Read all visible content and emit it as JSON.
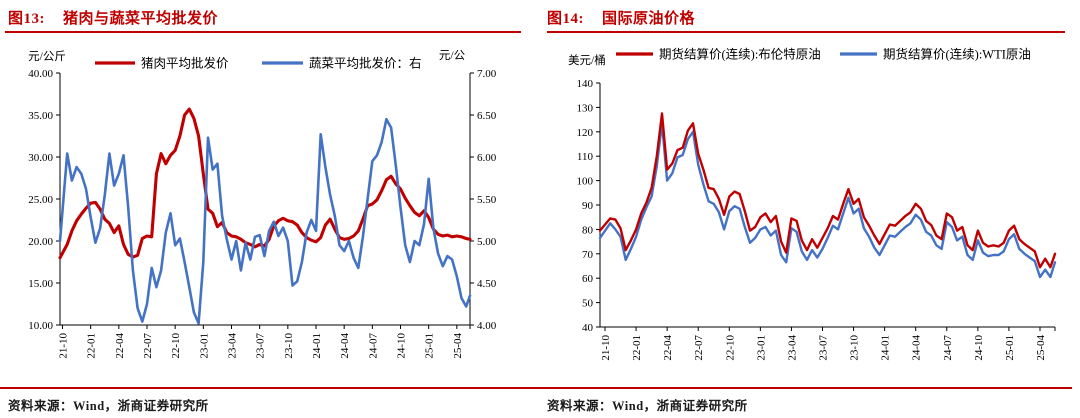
{
  "panels": [
    {
      "title_label": "图13:",
      "title": "猪肉与蔬菜平均批发价",
      "source": "资料来源：Wind，浙商证券研究所"
    },
    {
      "title_label": "图14:",
      "title": "国际原油价格",
      "source": "资料来源：Wind，浙商证券研究所"
    }
  ],
  "colors": {
    "accent_red": "#c00000",
    "line_red": "#c00000",
    "line_blue": "#4472c4",
    "axis_black": "#000000"
  },
  "chart_data": [
    {
      "type": "line",
      "title": "猪肉与蔬菜平均批发价",
      "x_start": "2021-10",
      "x_tick_labels": [
        "21-10",
        "22-01",
        "22-04",
        "22-07",
        "22-10",
        "23-01",
        "23-04",
        "23-07",
        "23-10",
        "24-01",
        "24-04",
        "24-07",
        "24-10",
        "25-01",
        "25-04"
      ],
      "y_left": {
        "label": "元/公斤",
        "min": 10,
        "max": 40,
        "tick_labels": [
          "40.00",
          "35.00",
          "30.00",
          "25.00",
          "20.00",
          "15.00",
          "10.00"
        ]
      },
      "y_right": {
        "label": "元/公",
        "min": 4,
        "max": 7,
        "tick_labels": [
          "7.00",
          "6.50",
          "6.00",
          "5.50",
          "5.00",
          "4.50",
          "4.00"
        ]
      },
      "grid": false,
      "legend_position": "top",
      "series": [
        {
          "name": "猪肉平均批发价",
          "axis": "left",
          "color": "#c00000",
          "x_start_month": 0,
          "x_step_months": 0.5,
          "values": [
            18.0,
            19.6,
            21.2,
            22.4,
            23.2,
            23.9,
            24.5,
            24.6,
            23.8,
            22.6,
            22.1,
            21.0,
            21.8,
            19.6,
            18.4,
            18.1,
            18.3,
            20.3,
            20.6,
            20.5,
            28.0,
            30.4,
            29.2,
            30.2,
            30.8,
            32.5,
            35.0,
            35.7,
            34.6,
            32.5,
            28.0,
            23.8,
            23.3,
            21.7,
            22.2,
            21.0,
            20.6,
            20.5,
            20.2,
            19.8,
            19.6,
            19.3,
            19.6,
            19.4,
            20.2,
            21.8,
            22.4,
            22.7,
            22.4,
            22.3,
            21.9,
            21.0,
            20.4,
            20.1,
            19.9,
            20.4,
            21.9,
            22.6,
            21.4,
            20.4,
            20.2,
            20.3,
            20.6,
            21.2,
            22.6,
            24.2,
            24.4,
            24.9,
            26.0,
            27.3,
            27.7,
            26.8,
            26.2,
            25.1,
            24.2,
            23.4,
            23.0,
            23.6,
            22.8,
            21.4,
            20.8,
            20.6,
            20.7,
            20.5,
            20.6,
            20.5,
            20.3,
            20.2
          ]
        },
        {
          "name": "蔬菜平均批发价：右",
          "axis": "right",
          "color": "#4472c4",
          "x_start_month": 0,
          "x_step_months": 0.5,
          "values": [
            5.0,
            6.04,
            5.72,
            5.88,
            5.8,
            5.62,
            5.28,
            4.98,
            5.15,
            5.55,
            6.04,
            5.66,
            5.8,
            6.02,
            5.4,
            4.65,
            4.2,
            4.04,
            4.25,
            4.68,
            4.45,
            4.65,
            5.1,
            5.33,
            4.95,
            5.03,
            4.75,
            4.45,
            4.15,
            4.02,
            4.75,
            6.23,
            5.85,
            5.92,
            5.3,
            5.02,
            4.78,
            5.0,
            4.65,
            4.98,
            4.78,
            5.05,
            5.07,
            4.82,
            5.12,
            5.23,
            5.06,
            5.16,
            5.0,
            4.47,
            4.52,
            4.75,
            5.1,
            5.25,
            5.12,
            6.27,
            5.88,
            5.55,
            5.3,
            4.95,
            4.88,
            5.0,
            4.8,
            4.68,
            5.05,
            5.5,
            5.95,
            6.02,
            6.18,
            6.45,
            6.35,
            5.9,
            5.4,
            4.95,
            4.75,
            5.0,
            4.95,
            5.2,
            5.74,
            5.15,
            4.85,
            4.7,
            4.82,
            4.78,
            4.58,
            4.32,
            4.22,
            4.35
          ]
        }
      ]
    },
    {
      "type": "line",
      "title": "国际原油价格",
      "x_start": "2021-10",
      "x_tick_labels": [
        "21-10",
        "22-01",
        "22-04",
        "22-07",
        "22-10",
        "23-01",
        "23-04",
        "23-07",
        "23-10",
        "24-01",
        "24-04",
        "24-07",
        "24-10",
        "25-01",
        "25-04"
      ],
      "y_left": {
        "label": "美元/桶",
        "min": 40,
        "max": 140,
        "tick_labels": [
          "140",
          "130",
          "120",
          "110",
          "100",
          "90",
          "80",
          "70",
          "60",
          "50",
          "40"
        ]
      },
      "grid": false,
      "legend_position": "top",
      "series": [
        {
          "name": "期货结算价(连续):布伦特原油",
          "axis": "left",
          "color": "#c00000",
          "x_start_month": 0,
          "x_step_months": 0.5,
          "values": [
            79.5,
            84.5,
            84.0,
            80.5,
            71.5,
            75.5,
            80.0,
            86.5,
            91.0,
            97.0,
            110.0,
            127.5,
            104.5,
            107.0,
            112.5,
            113.5,
            120.5,
            123.5,
            111.0,
            104.5,
            97.0,
            96.5,
            92.5,
            86.0,
            93.5,
            95.5,
            94.5,
            87.5,
            79.5,
            81.0,
            85.0,
            86.5,
            83.0,
            85.5,
            75.0,
            70.5,
            84.5,
            83.5,
            75.5,
            71.5,
            76.0,
            72.5,
            76.5,
            80.5,
            85.5,
            84.0,
            90.5,
            96.5,
            90.5,
            92.5,
            85.0,
            81.5,
            77.5,
            74.0,
            78.0,
            82.0,
            81.5,
            83.5,
            85.5,
            87.0,
            90.5,
            88.5,
            83.5,
            81.8,
            77.5,
            76.0,
            86.5,
            85.0,
            79.5,
            81.0,
            73.5,
            71.5,
            79.5,
            74.5,
            73.0,
            73.5,
            73.0,
            74.5,
            79.5,
            81.5,
            76.0,
            74.0,
            72.5,
            71.0,
            64.5,
            68.0,
            64.5,
            70.0
          ]
        },
        {
          "name": "期货结算价(连续):WTI原油",
          "axis": "left",
          "color": "#4472c4",
          "x_start_month": 0,
          "x_step_months": 0.5,
          "values": [
            76.5,
            82.5,
            80.0,
            77.0,
            67.5,
            72.0,
            77.0,
            84.0,
            89.0,
            93.5,
            106.0,
            123.5,
            100.0,
            103.0,
            109.5,
            110.5,
            117.0,
            120.0,
            106.5,
            98.5,
            91.5,
            90.5,
            87.0,
            80.0,
            87.5,
            89.5,
            88.5,
            81.0,
            74.5,
            76.5,
            80.0,
            81.0,
            77.5,
            79.5,
            69.5,
            66.5,
            80.5,
            79.0,
            71.0,
            67.5,
            71.5,
            68.5,
            72.0,
            76.5,
            81.5,
            80.0,
            86.5,
            93.0,
            86.5,
            88.5,
            80.5,
            77.0,
            72.5,
            69.5,
            73.5,
            77.5,
            77.0,
            79.0,
            81.0,
            82.5,
            86.0,
            84.0,
            79.0,
            77.5,
            73.5,
            72.0,
            83.0,
            81.0,
            75.5,
            77.0,
            69.5,
            67.5,
            75.5,
            70.5,
            69.0,
            69.5,
            69.5,
            71.0,
            76.0,
            78.0,
            72.0,
            70.0,
            68.5,
            67.0,
            60.5,
            63.5,
            60.5,
            66.5
          ]
        }
      ]
    }
  ]
}
